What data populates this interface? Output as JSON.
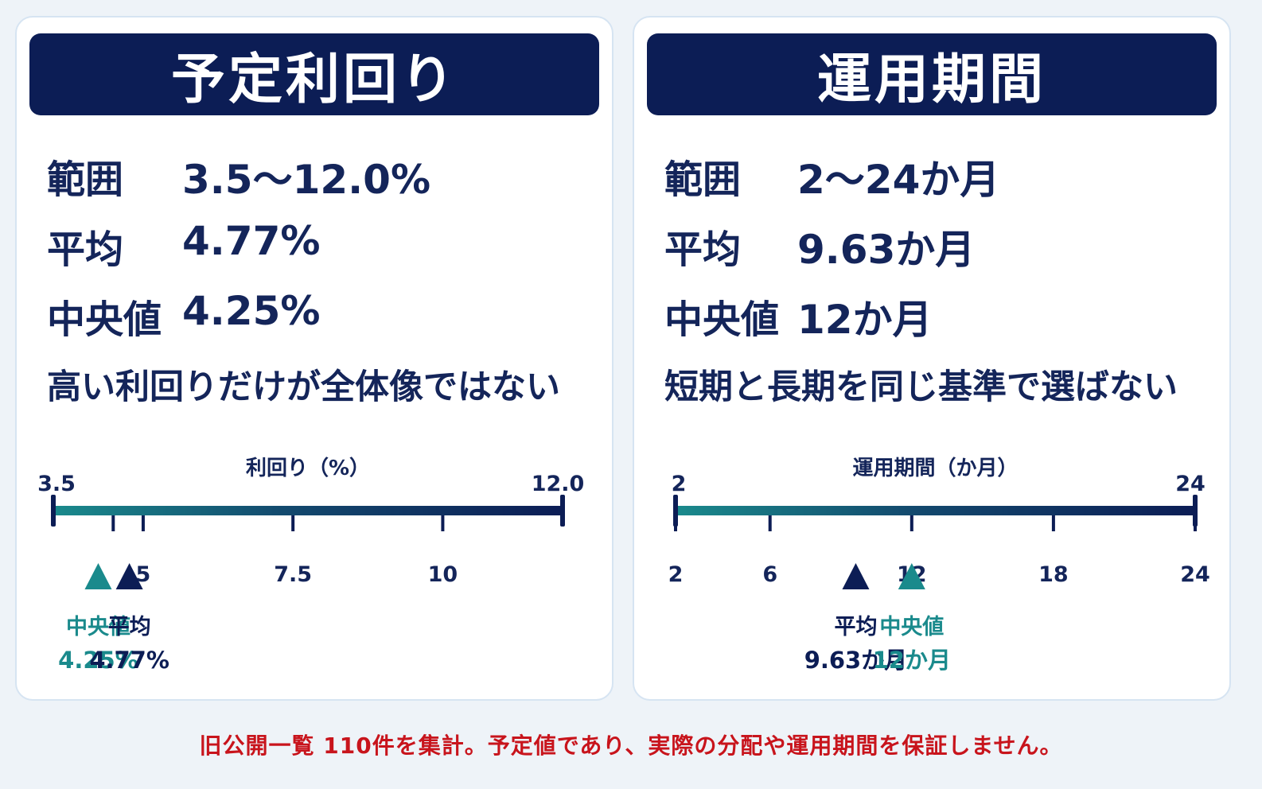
{
  "left": {
    "title": "予定利回り",
    "range_label": "範囲",
    "range_value": "3.5〜12.0%",
    "mean_label": "平均",
    "mean_value": "4.77%",
    "median_label": "中央値",
    "median_value": "4.25%",
    "tagline": "高い利回りだけが全体像ではない"
  },
  "right": {
    "title": "運用期間",
    "range_label": "範囲",
    "range_value": "2〜24か月",
    "mean_label": "平均",
    "mean_value": "9.63か月",
    "median_label": "中央値",
    "median_value": "12か月",
    "tagline": "短期と長期を同じ基準で選ばない"
  },
  "footer": "旧公開一覧 110件を集計。予定値であり、実際の分配や運用期間を保証しません。",
  "colors": {
    "navy": "#0c1d55",
    "teal": "#1a8a8c",
    "text": "#14255a",
    "footer_red": "#c8141c"
  },
  "chart_data": [
    {
      "type": "number-line",
      "title": "利回り（%）",
      "min": 3.5,
      "max": 12.0,
      "min_label": "3.5",
      "max_label": "12.0",
      "ticks": [
        4.5,
        5,
        7.5,
        10
      ],
      "tick_labels": [
        "",
        "5",
        "7.5",
        "10"
      ],
      "markers": [
        {
          "name": "中央値",
          "value": 4.25,
          "label": "4.25%",
          "color": "teal"
        },
        {
          "name": "平均",
          "value": 4.77,
          "label": "4.77%",
          "color": "navy"
        }
      ]
    },
    {
      "type": "number-line",
      "title": "運用期間（か月）",
      "min": 2,
      "max": 24,
      "min_label": "2",
      "max_label": "24",
      "ticks": [
        2,
        6,
        12,
        18,
        24
      ],
      "tick_labels": [
        "2",
        "6",
        "12",
        "18",
        "24"
      ],
      "markers": [
        {
          "name": "平均",
          "value": 9.63,
          "label": "9.63か月",
          "color": "navy"
        },
        {
          "name": "中央値",
          "value": 12,
          "label": "12か月",
          "color": "teal"
        }
      ]
    }
  ]
}
